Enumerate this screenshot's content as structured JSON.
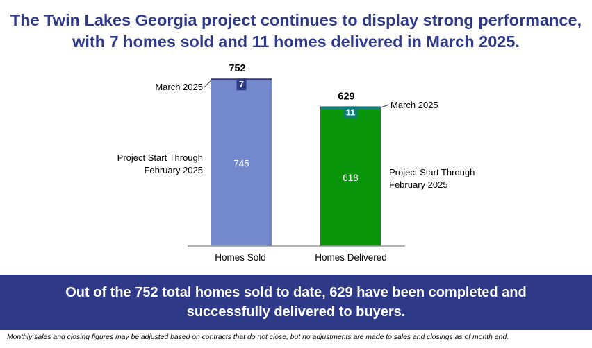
{
  "headline": {
    "line1": "The Twin Lakes Georgia project continues to display strong performance,",
    "line2": "with 7 homes sold and 11 homes delivered in March 2025."
  },
  "chart_data": {
    "type": "bar",
    "stacked": true,
    "categories": [
      "Homes Sold",
      "Homes Delivered"
    ],
    "totals": [
      752,
      629
    ],
    "series": [
      {
        "name": "Project Start Through February 2025",
        "values": [
          745,
          618
        ]
      },
      {
        "name": "March 2025",
        "values": [
          7,
          11
        ]
      }
    ],
    "ylim": [
      0,
      752
    ],
    "grid": false,
    "colors": {
      "homes_sold_base": "#7389cc",
      "homes_sold_top": "#2e3a87",
      "homes_delivered_base": "#0a960a",
      "homes_delivered_top": "#0f7a78",
      "baseline": "#999999"
    }
  },
  "annotations": {
    "march_label": "March 2025",
    "start_line1": "Project Start Through",
    "start_line2": "February 2025"
  },
  "banner": {
    "line1": "Out of the 752 total homes sold to date, 629 have been completed and",
    "line2": "successfully delivered to buyers."
  },
  "footnote": "Monthly sales and closing figures may be adjusted based on contracts that do not close, but no adjustments are made to sales and closings as of month end."
}
